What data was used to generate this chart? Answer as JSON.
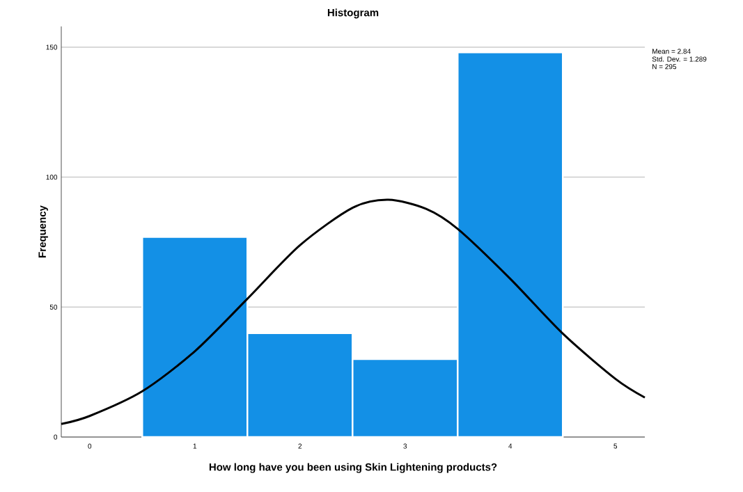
{
  "chart_data": {
    "type": "histogram",
    "title": "Histogram",
    "xlabel": "How long have you been using Skin Lightening products?",
    "ylabel": "Frequency",
    "bins": [
      0.5,
      1.5,
      2.5,
      3.5,
      4.5
    ],
    "values": [
      77,
      40,
      30,
      148
    ],
    "color": "#1390e6",
    "series": [
      {
        "type": "line",
        "color": "#000000",
        "x": [
          -0.27,
          0,
          0.5,
          1,
          1.5,
          2,
          2.5,
          2.84,
          3.2,
          3.5,
          4,
          4.5,
          5,
          5.28
        ],
        "values": [
          5,
          8.1,
          17.6,
          33,
          53.2,
          73.8,
          88.2,
          91.3,
          87.8,
          80.1,
          60.9,
          39.8,
          22.4,
          15.2
        ]
      }
    ],
    "xlim": [
      -0.27,
      5.28
    ],
    "ylim": [
      0,
      158
    ],
    "xticks": [
      0,
      1,
      2,
      3,
      4,
      5
    ],
    "yticks": [
      0,
      50,
      100,
      150
    ],
    "grid": "y",
    "annotations": [
      "Mean = 2.84",
      "Std. Dev. = 1.289",
      "N = 295"
    ]
  }
}
